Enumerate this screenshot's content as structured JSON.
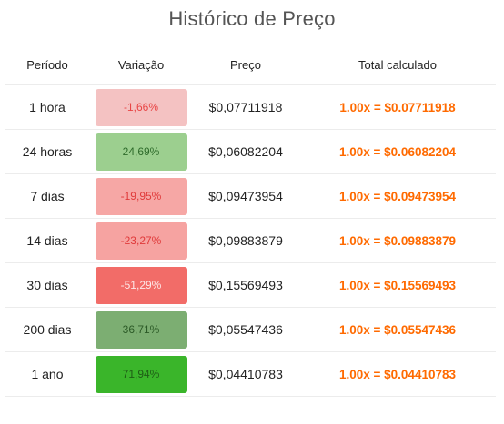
{
  "title": "Histórico de Preço",
  "headers": {
    "period": "Período",
    "variation": "Variação",
    "price": "Preço",
    "total": "Total calculado"
  },
  "rows": [
    {
      "period": "1 hora",
      "variation": "-1,66%",
      "price": "$0,07711918",
      "total": "1.00x = $0.07711918",
      "badge_bg": "#f4c2c2",
      "badge_fg": "#e84545"
    },
    {
      "period": "24 horas",
      "variation": "24,69%",
      "price": "$0,06082204",
      "total": "1.00x = $0.06082204",
      "badge_bg": "#9ccf8f",
      "badge_fg": "#2e6b2b"
    },
    {
      "period": "7 dias",
      "variation": "-19,95%",
      "price": "$0,09473954",
      "total": "1.00x = $0.09473954",
      "badge_bg": "#f6a7a5",
      "badge_fg": "#e03a3a"
    },
    {
      "period": "14 dias",
      "variation": "-23,27%",
      "price": "$0,09883879",
      "total": "1.00x = $0.09883879",
      "badge_bg": "#f6a3a1",
      "badge_fg": "#e03a3a"
    },
    {
      "period": "30 dias",
      "variation": "-51,29%",
      "price": "$0,15569493",
      "total": "1.00x = $0.15569493",
      "badge_bg": "#f26c68",
      "badge_fg": "#fde8e8"
    },
    {
      "period": "200 dias",
      "variation": "36,71%",
      "price": "$0,05547436",
      "total": "1.00x = $0.05547436",
      "badge_bg": "#7cae72",
      "badge_fg": "#2c5a27"
    },
    {
      "period": "1 ano",
      "variation": "71,94%",
      "price": "$0,04410783",
      "total": "1.00x = $0.04410783",
      "badge_bg": "#3ab52a",
      "badge_fg": "#1e5c16"
    }
  ],
  "colors": {
    "accent_total": "#ff6a00"
  }
}
